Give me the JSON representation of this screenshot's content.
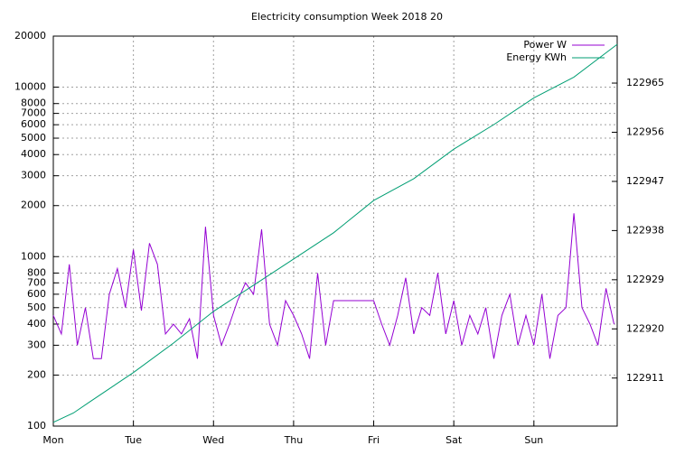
{
  "chart_data": {
    "type": "line",
    "title": "Electricity consumption Week 2018 20",
    "log_scale": true,
    "grid": true,
    "legend": "top-right",
    "xlim": [
      0,
      7.04
    ],
    "xticks": [
      {
        "value": 0,
        "label": "Mon"
      },
      {
        "value": 1,
        "label": "Tue"
      },
      {
        "value": 2,
        "label": "Wed"
      },
      {
        "value": 3,
        "label": "Thu"
      },
      {
        "value": 4,
        "label": "Fri"
      },
      {
        "value": 5,
        "label": "Sat"
      },
      {
        "value": 6,
        "label": "Sun"
      }
    ],
    "ylim": [
      100,
      20000
    ],
    "yticks": [
      100,
      200,
      300,
      400,
      500,
      600,
      700,
      800,
      1000,
      2000,
      3000,
      4000,
      5000,
      6000,
      7000,
      8000,
      10000,
      20000
    ],
    "y2lim": [
      122902.2,
      122973.6
    ],
    "y2ticks": [
      122911,
      122920,
      122929,
      122938,
      122947,
      122956,
      122965
    ],
    "series": [
      {
        "name": "Power W",
        "color": "#9400d3",
        "x": [
          0,
          0.1,
          0.2,
          0.3,
          0.4,
          0.5,
          0.6,
          0.7,
          0.8,
          0.9,
          1,
          1.1,
          1.2,
          1.3,
          1.4,
          1.5,
          1.6,
          1.7,
          1.8,
          1.9,
          2,
          2.1,
          2.2,
          2.3,
          2.4,
          2.5,
          2.6,
          2.7,
          2.8,
          2.9,
          3,
          3.1,
          3.2,
          3.3,
          3.4,
          3.5,
          3.6,
          3.7,
          3.8,
          3.9,
          4,
          4.1,
          4.2,
          4.3,
          4.4,
          4.5,
          4.6,
          4.7,
          4.8,
          4.9,
          5,
          5.1,
          5.2,
          5.3,
          5.4,
          5.5,
          5.6,
          5.7,
          5.8,
          5.9,
          6,
          6.1,
          6.2,
          6.3,
          6.4,
          6.5,
          6.6,
          6.7,
          6.8,
          6.9,
          7
        ],
        "values": [
          450,
          350,
          900,
          300,
          500,
          250,
          250,
          600,
          850,
          500,
          1100,
          480,
          1200,
          900,
          350,
          400,
          350,
          430,
          250,
          1500,
          450,
          300,
          400,
          550,
          700,
          600,
          1450,
          400,
          300,
          550,
          450,
          350,
          250,
          800,
          300,
          550,
          550,
          550,
          550,
          550,
          550,
          400,
          300,
          450,
          750,
          350,
          500,
          450,
          800,
          350,
          550,
          300,
          450,
          350,
          500,
          250,
          450,
          600,
          300,
          450,
          300,
          600,
          250,
          450,
          500,
          1800,
          500,
          400,
          300,
          650,
          400
        ]
      },
      {
        "name": "Energy KWh",
        "color": "#009e73",
        "axis": "y2",
        "x": [
          0,
          0.25,
          0.46,
          1,
          1.5,
          2,
          2.5,
          3,
          3.5,
          4,
          4.5,
          5,
          5.5,
          6,
          6.5,
          7.04
        ],
        "values": [
          122902.9,
          122904.6,
          122906.7,
          122912.0,
          122917.4,
          122923.2,
          122928.0,
          122932.8,
          122937.6,
          122943.5,
          122947.5,
          122952.9,
          122957.4,
          122962.3,
          122966.1,
          122972.1
        ]
      }
    ]
  }
}
